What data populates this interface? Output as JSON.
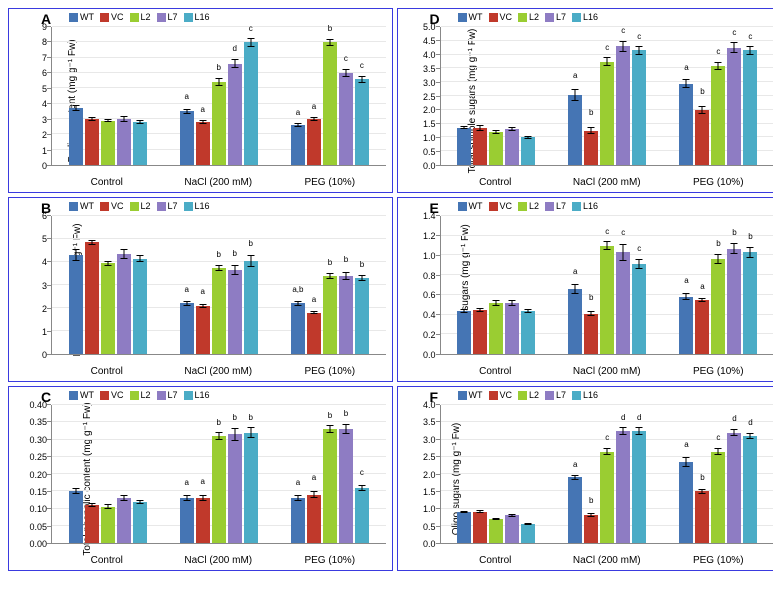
{
  "legend": {
    "items": [
      {
        "label": "WT",
        "color": "#4575b4"
      },
      {
        "label": "VC",
        "color": "#c0392b"
      },
      {
        "label": "L2",
        "color": "#9acd32"
      },
      {
        "label": "L7",
        "color": "#8e7cc3"
      },
      {
        "label": "L16",
        "color": "#4bacc6"
      }
    ]
  },
  "xcats": [
    "Control",
    "NaCl (200 mM)",
    "PEG (10%)"
  ],
  "panels": [
    {
      "letter": "A",
      "ylabel": "Proline content (mg g⁻¹ Fw)",
      "ymin": 0,
      "ymax": 9,
      "ystep": 1,
      "groups": [
        {
          "vals": [
            3.7,
            3.0,
            2.9,
            3.0,
            2.8
          ],
          "err": [
            0.3,
            0.15,
            0.15,
            0.3,
            0.15
          ],
          "ann": [
            "",
            "",
            "",
            "",
            ""
          ]
        },
        {
          "vals": [
            3.5,
            2.8,
            5.4,
            6.6,
            8.0
          ],
          "err": [
            0.3,
            0.15,
            0.3,
            0.3,
            0.25
          ],
          "ann": [
            "a",
            "a",
            "b",
            "d",
            "c"
          ]
        },
        {
          "vals": [
            2.6,
            3.0,
            8.0,
            6.0,
            5.6
          ],
          "err": [
            0.15,
            0.15,
            0.2,
            0.3,
            0.25
          ],
          "ann": [
            "a",
            "a",
            "b",
            "c",
            "c"
          ]
        }
      ]
    },
    {
      "letter": "D",
      "ylabel": "Total soluble sugars (mg g⁻¹ Fw)",
      "ymin": 0,
      "ymax": 5.0,
      "ystep": 0.5,
      "groups": [
        {
          "vals": [
            1.35,
            1.35,
            1.2,
            1.3,
            1.0
          ],
          "err": [
            0.1,
            0.25,
            0.1,
            0.15,
            0.1
          ],
          "ann": [
            "",
            "",
            "",
            "",
            ""
          ]
        },
        {
          "vals": [
            2.55,
            1.25,
            3.75,
            4.3,
            4.15
          ],
          "err": [
            0.35,
            0.3,
            0.15,
            0.2,
            0.15
          ],
          "ann": [
            "a",
            "b",
            "c",
            "c",
            "c"
          ]
        },
        {
          "vals": [
            2.95,
            2.0,
            3.6,
            4.25,
            4.15
          ],
          "err": [
            0.2,
            0.3,
            0.15,
            0.2,
            0.15
          ],
          "ann": [
            "a",
            "b",
            "c",
            "c",
            "c"
          ]
        }
      ]
    },
    {
      "letter": "B",
      "ylabel": "Free amino acids (mg g⁻¹ Fw)",
      "ymin": 0,
      "ymax": 6,
      "ystep": 1,
      "groups": [
        {
          "vals": [
            4.3,
            4.85,
            3.95,
            4.35,
            4.15
          ],
          "err": [
            0.3,
            0.1,
            0.1,
            0.25,
            0.15
          ],
          "ann": [
            "",
            "",
            "",
            "",
            ""
          ]
        },
        {
          "vals": [
            2.2,
            2.1,
            3.75,
            3.65,
            4.05
          ],
          "err": [
            0.15,
            0.15,
            0.15,
            0.3,
            0.3
          ],
          "ann": [
            "a",
            "a",
            "b",
            "b",
            "b"
          ]
        },
        {
          "vals": [
            2.2,
            1.8,
            3.4,
            3.4,
            3.3
          ],
          "err": [
            0.15,
            0.1,
            0.15,
            0.25,
            0.15
          ],
          "ann": [
            "a,b",
            "a",
            "b",
            "b",
            "b"
          ]
        }
      ]
    },
    {
      "letter": "E",
      "ylabel": "Reducing sugars (mg g⁻¹ Fw)",
      "ymin": 0,
      "ymax": 1.4,
      "ystep": 0.2,
      "groups": [
        {
          "vals": [
            0.44,
            0.45,
            0.52,
            0.52,
            0.44
          ],
          "err": [
            0.03,
            0.03,
            0.06,
            0.06,
            0.03
          ],
          "ann": [
            "",
            "",
            "",
            "",
            ""
          ]
        },
        {
          "vals": [
            0.66,
            0.41,
            1.1,
            1.03,
            0.91
          ],
          "err": [
            0.08,
            0.06,
            0.04,
            0.1,
            0.06
          ],
          "ann": [
            "a",
            "b",
            "c",
            "c",
            "c"
          ]
        },
        {
          "vals": [
            0.58,
            0.55,
            0.96,
            1.07,
            1.03
          ],
          "err": [
            0.06,
            0.03,
            0.06,
            0.06,
            0.06
          ],
          "ann": [
            "a",
            "a",
            "b",
            "b",
            "b"
          ]
        }
      ]
    },
    {
      "letter": "C",
      "ylabel": "Total phenolic content (mg g⁻¹ Fw)",
      "ymin": 0,
      "ymax": 0.4,
      "ystep": 0.05,
      "groups": [
        {
          "vals": [
            0.15,
            0.11,
            0.105,
            0.13,
            0.12
          ],
          "err": [
            0.015,
            0.015,
            0.015,
            0.015,
            0.01
          ],
          "ann": [
            "",
            "",
            "",
            "",
            ""
          ]
        },
        {
          "vals": [
            0.13,
            0.13,
            0.31,
            0.315,
            0.32
          ],
          "err": [
            0.015,
            0.02,
            0.01,
            0.02,
            0.015
          ],
          "ann": [
            "a",
            "a",
            "b",
            "b",
            "b"
          ]
        },
        {
          "vals": [
            0.13,
            0.14,
            0.33,
            0.33,
            0.16
          ],
          "err": [
            0.015,
            0.02,
            0.01,
            0.015,
            0.015
          ],
          "ann": [
            "a",
            "a",
            "b",
            "b",
            "c"
          ]
        }
      ]
    },
    {
      "letter": "F",
      "ylabel": "Oligo sugars (mg g⁻¹ Fw)",
      "ymin": 0,
      "ymax": 4.0,
      "ystep": 0.5,
      "groups": [
        {
          "vals": [
            0.9,
            0.91,
            0.7,
            0.8,
            0.55
          ],
          "err": [
            0.05,
            0.05,
            0.05,
            0.1,
            0.05
          ],
          "ann": [
            "",
            "",
            "",
            "",
            ""
          ]
        },
        {
          "vals": [
            1.9,
            0.8,
            2.65,
            3.25,
            3.25
          ],
          "err": [
            0.08,
            0.15,
            0.1,
            0.1,
            0.1
          ],
          "ann": [
            "a",
            "b",
            "c",
            "d",
            "d"
          ]
        },
        {
          "vals": [
            2.35,
            1.5,
            2.65,
            3.2,
            3.1
          ],
          "err": [
            0.2,
            0.1,
            0.1,
            0.1,
            0.08
          ],
          "ann": [
            "a",
            "b",
            "c",
            "d",
            "d"
          ]
        }
      ]
    }
  ]
}
